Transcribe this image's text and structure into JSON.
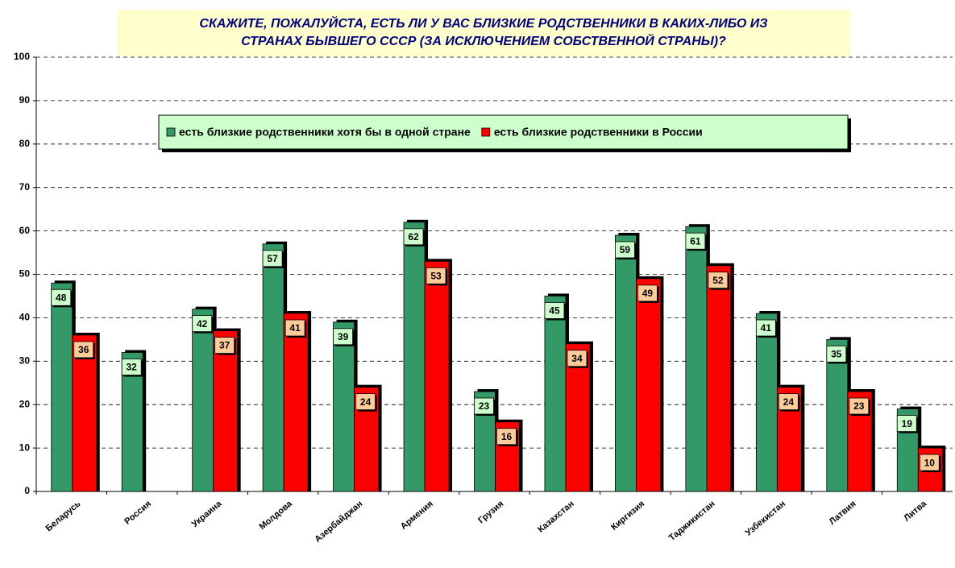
{
  "chart_data": {
    "type": "bar",
    "title": [
      "СКАЖИТЕ, ПОЖАЛУЙСТА, ЕСТЬ ЛИ У ВАС  БЛИЗКИЕ РОДСТВЕННИКИ  В КАКИХ-ЛИБО ИЗ",
      "СТРАНАХ БЫВШЕГО СССР (ЗА ИСКЛЮЧЕНИЕМ СОБСТВЕННОЙ СТРАНЫ)?"
    ],
    "categories": [
      "Беларусь",
      "Россия",
      "Украина",
      "Молдова",
      "Азербайджан",
      "Армения",
      "Грузия",
      "Казахстан",
      "Киргизия",
      "Таджикистан",
      "Узбекистан",
      "Латвия",
      "Литва"
    ],
    "series": [
      {
        "name": "есть близкие родственники хотя бы в одной стране",
        "color": "#339966",
        "label_fill": "#ccffcc",
        "values": [
          48,
          32,
          42,
          57,
          39,
          62,
          23,
          45,
          59,
          61,
          41,
          35,
          19
        ]
      },
      {
        "name": "есть близкие родственники в России",
        "color": "#ff0000",
        "label_fill": "#ffcc99",
        "values": [
          36,
          null,
          37,
          41,
          24,
          53,
          16,
          34,
          49,
          52,
          24,
          23,
          10
        ]
      }
    ],
    "ylim": [
      0,
      100
    ],
    "yticks": [
      0,
      10,
      20,
      30,
      40,
      50,
      60,
      70,
      80,
      90,
      100
    ],
    "grid": true,
    "legend": "top"
  }
}
